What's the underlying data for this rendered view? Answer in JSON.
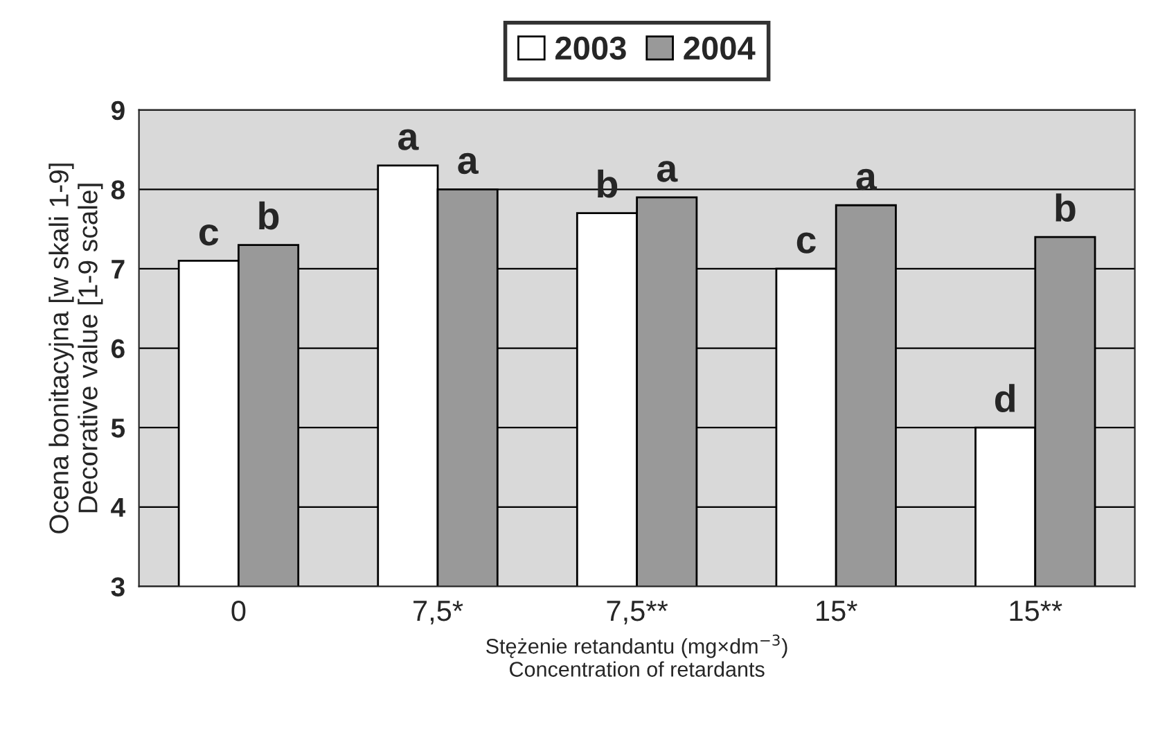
{
  "chart_data": {
    "type": "bar",
    "categories": [
      "0",
      "7,5*",
      "7,5**",
      "15*",
      "15**"
    ],
    "series": [
      {
        "name": "2003",
        "color": "#ffffff",
        "values": [
          7.1,
          8.3,
          7.7,
          7.0,
          5.0
        ],
        "value_labels": [
          "c",
          "a",
          "b",
          "c",
          "d"
        ]
      },
      {
        "name": "2004",
        "color": "#999999",
        "values": [
          7.3,
          8.0,
          7.9,
          7.8,
          7.4
        ],
        "value_labels": [
          "b",
          "a",
          "a",
          "a",
          "b"
        ]
      }
    ],
    "ylim": [
      3,
      9
    ],
    "yticks": [
      3,
      4,
      5,
      6,
      7,
      8,
      9
    ],
    "ylabel": "Ocena bonitacyjna [w skali 1-9]\nDecorative value [1-9 scale]",
    "xlabel": "Stężenie retandantu (mg×dm$^{−3}$)\nConcentration of retardants",
    "grid": "y",
    "legend": "top"
  }
}
